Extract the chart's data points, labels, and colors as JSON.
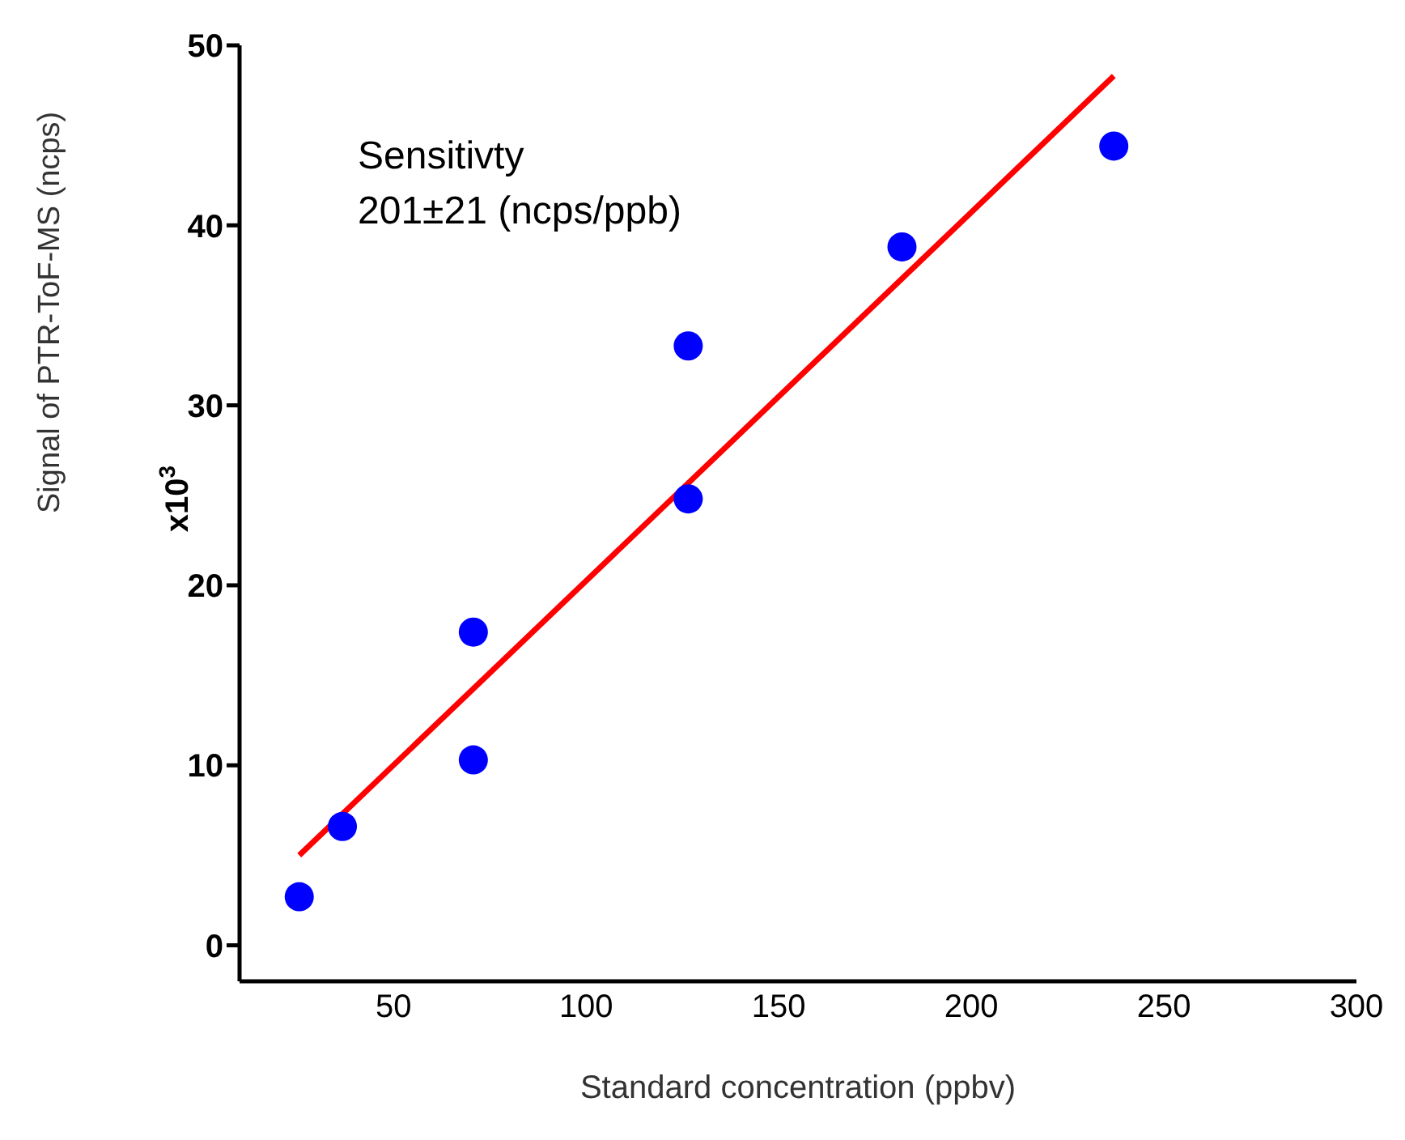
{
  "chart_data": {
    "type": "scatter",
    "xlabel": "Standard concentration (ppbv)",
    "ylabel": "Signal of PTR-ToF-MS (ncps)",
    "annotations": [
      "x10$^{3}$",
      "Sensitivty",
      "201±21 (ncps/ppb)"
    ],
    "series": [
      {
        "color": "#0000ff",
        "marker": "circle",
        "x": [
          25.5,
          36.7,
          70.7,
          70.7,
          126.5,
          126.5,
          182,
          237
        ],
        "values": [
          2.7,
          6.6,
          17.4,
          10.3,
          33.3,
          24.8,
          38.8,
          44.4
        ]
      },
      {
        "type": "line",
        "color": "#ff0000",
        "marker": "none",
        "x": [
          25.5,
          237
        ],
        "values": [
          5,
          48.3
        ]
      }
    ],
    "xlim": [
      10,
      300
    ],
    "xticks": [
      50,
      100,
      150,
      200,
      250,
      300
    ],
    "ylim": [
      -2,
      50
    ],
    "yticks": [
      0,
      10,
      20,
      30,
      40,
      50
    ],
    "grid": false,
    "legend": false,
    "line_style": "solid"
  }
}
